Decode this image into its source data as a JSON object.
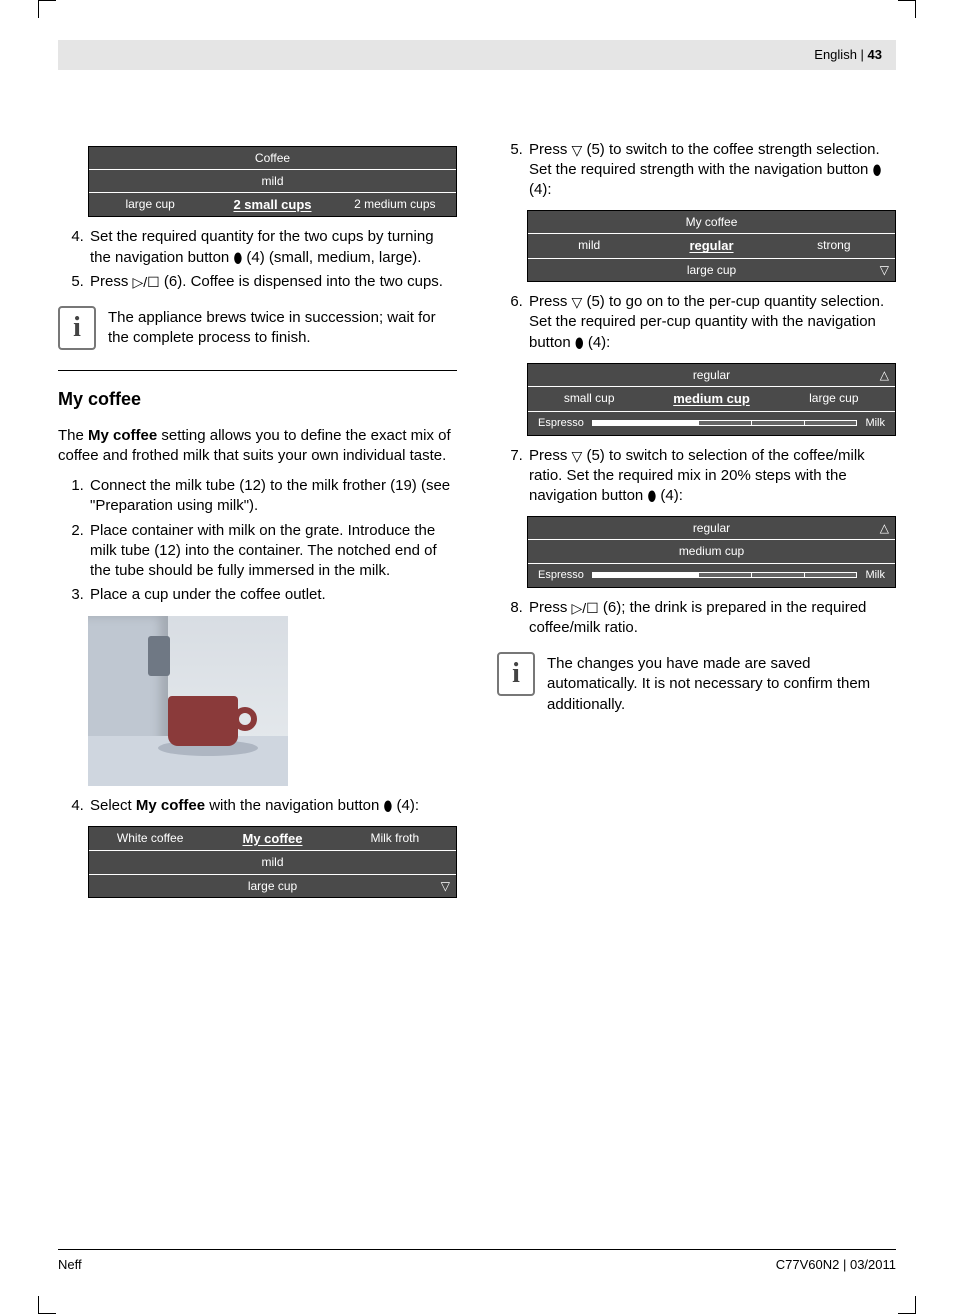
{
  "header": {
    "lang": "English",
    "sep": " | ",
    "page": "43"
  },
  "footer": {
    "left": "Neff",
    "right": "C77V60N2 | 03/2011"
  },
  "left": {
    "display1": {
      "r1": "Coffee",
      "r2": "mild",
      "r3a": "large cup",
      "r3b": "2 small cups",
      "r3c": "2 medium cups"
    },
    "li4": "Set the required quantity for the two cups by turning the navigation button ",
    "li4_after": " (4) (small, medium, large).",
    "li5": "Press ",
    "li5_after": " (6). Coffee is dispensed into the two cups.",
    "info1": "The appliance brews twice in succession; wait for the complete process to finish.",
    "h2": "My coffee",
    "intro_a": "The ",
    "intro_b": "My coffee",
    "intro_c": " setting allows you to define the exact mix of coffee and frothed milk that suits your own individual taste.",
    "ol2_li1": "Connect the milk tube (12) to the milk frother (19) (see \"Preparation using milk\").",
    "ol2_li2": "Place container with milk on the grate. Introduce the milk tube (12) into the container. The notched end of the tube should be fully immersed in the milk.",
    "ol2_li3": "Place a cup under the coffee outlet.",
    "ol3_li4_a": "Select ",
    "ol3_li4_b": "My coffee",
    "ol3_li4_c": " with the navigation button ",
    "ol3_li4_d": " (4):",
    "display4": {
      "r1a": "White coffee",
      "r1b": "My coffee",
      "r1c": "Milk froth",
      "r2": "mild",
      "r3": "large cup"
    }
  },
  "right": {
    "li5": "Press ",
    "li5_mid": " (5) to switch to the coffee strength selection. Set the required strength with the navigation button ",
    "li5_after": " (4):",
    "display5": {
      "r1": "My coffee",
      "r2a": "mild",
      "r2b": "regular",
      "r2c": "strong",
      "r3": "large cup"
    },
    "li6a": "Press ",
    "li6b": " (5) to go on to the per-cup quantity selection. Set the required per-cup quantity with the navigation button ",
    "li6c": " (4):",
    "display6": {
      "r1": "regular",
      "r2a": "small cup",
      "r2b": "medium cup",
      "r2c": "large cup",
      "barL": "Espresso",
      "barR": "Milk"
    },
    "li7a": "Press ",
    "li7b": " (5) to switch to selection of the coffee/milk ratio. Set the required mix in 20% steps with the navigation button ",
    "li7c": " (4):",
    "display7": {
      "r1": "regular",
      "r2": "medium cup",
      "barL": "Espresso",
      "barR": "Milk"
    },
    "li8a": "Press ",
    "li8b": " (6); the drink is prepared in the required coffee/milk ratio.",
    "info2": "The changes you have made are saved automatically. It is not necessary to confirm them additionally."
  },
  "icons": {
    "nav_btn": "⬮",
    "down": "▽",
    "up": "△",
    "play_stop": "▷/☐"
  },
  "style": {
    "display_bg": "#4a4a4a"
  }
}
